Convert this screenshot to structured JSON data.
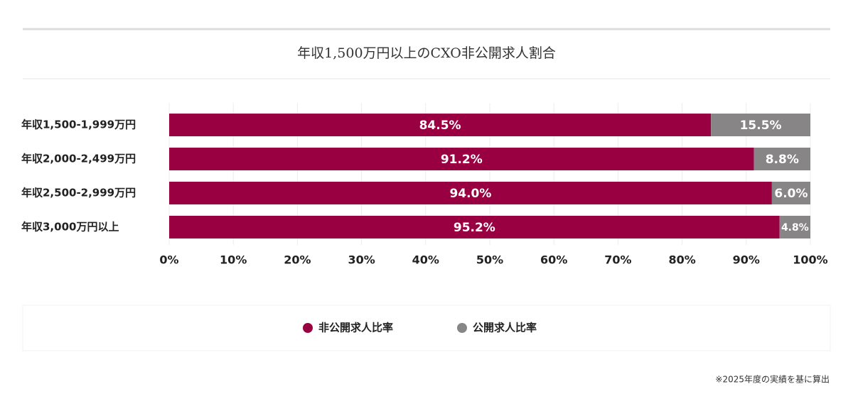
{
  "chart_data": {
    "type": "stacked-bar-horizontal",
    "title": "年収1,500万円以上のCXO非公開求人割合",
    "categories": [
      "年収1,500-1,999万円",
      "年収2,000-2,499万円",
      "年収2,500-2,999万円",
      "年収3,000万円以上"
    ],
    "series": [
      {
        "name": "非公開求人比率",
        "color": "#990042",
        "values": [
          84.5,
          91.2,
          94.0,
          95.2
        ],
        "value_labels": [
          "84.5%",
          "91.2%",
          "94.0%",
          "95.2%"
        ]
      },
      {
        "name": "公開求人比率",
        "color": "#878586",
        "values": [
          15.5,
          8.8,
          6.0,
          4.8
        ],
        "value_labels": [
          "15.5%",
          "8.8%",
          "6.0%",
          "4.8%"
        ]
      }
    ],
    "xlim": [
      0,
      100
    ],
    "xticks": [
      {
        "value": 0,
        "label": "0%"
      },
      {
        "value": 10,
        "label": "10%"
      },
      {
        "value": 20,
        "label": "20%"
      },
      {
        "value": 30,
        "label": "30%"
      },
      {
        "value": 40,
        "label": "40%"
      },
      {
        "value": 50,
        "label": "50%"
      },
      {
        "value": 60,
        "label": "60%"
      },
      {
        "value": 70,
        "label": "70%"
      },
      {
        "value": 80,
        "label": "80%"
      },
      {
        "value": 90,
        "label": "90%"
      },
      {
        "value": 100,
        "label": "100%"
      }
    ],
    "grid": true,
    "note": "※2025年度の実績を基に算出"
  }
}
